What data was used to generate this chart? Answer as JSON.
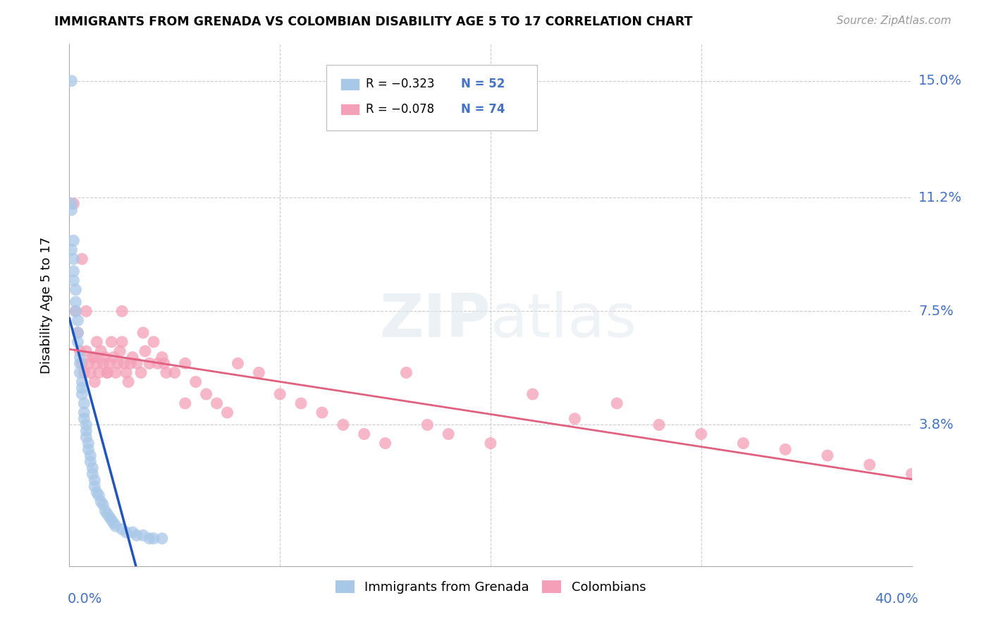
{
  "title": "IMMIGRANTS FROM GRENADA VS COLOMBIAN DISABILITY AGE 5 TO 17 CORRELATION CHART",
  "source": "Source: ZipAtlas.com",
  "ylabel": "Disability Age 5 to 17",
  "ytick_vals": [
    0.038,
    0.075,
    0.112,
    0.15
  ],
  "ytick_labels": [
    "3.8%",
    "7.5%",
    "11.2%",
    "15.0%"
  ],
  "xlim": [
    0.0,
    0.4
  ],
  "ylim": [
    -0.008,
    0.162
  ],
  "color_blue": "#a8c8e8",
  "color_pink": "#f4a0b8",
  "color_blue_line": "#2255bb",
  "color_pink_line": "#e06080",
  "color_axis_label": "#4472c4",
  "color_grid": "#cccccc",
  "legend_r1": "R = -0.323",
  "legend_n1": "N = 52",
  "legend_r2": "R = -0.078",
  "legend_n2": "N = 74",
  "grenada_x": [
    0.001,
    0.001,
    0.001,
    0.001,
    0.002,
    0.002,
    0.002,
    0.002,
    0.003,
    0.003,
    0.003,
    0.004,
    0.004,
    0.004,
    0.005,
    0.005,
    0.005,
    0.006,
    0.006,
    0.006,
    0.007,
    0.007,
    0.007,
    0.008,
    0.008,
    0.008,
    0.009,
    0.009,
    0.01,
    0.01,
    0.011,
    0.011,
    0.012,
    0.012,
    0.013,
    0.014,
    0.015,
    0.016,
    0.017,
    0.018,
    0.019,
    0.02,
    0.021,
    0.022,
    0.025,
    0.027,
    0.03,
    0.032,
    0.035,
    0.038,
    0.04,
    0.044
  ],
  "grenada_y": [
    0.15,
    0.11,
    0.108,
    0.095,
    0.098,
    0.092,
    0.088,
    0.085,
    0.082,
    0.078,
    0.075,
    0.072,
    0.068,
    0.065,
    0.06,
    0.058,
    0.055,
    0.052,
    0.05,
    0.048,
    0.045,
    0.042,
    0.04,
    0.038,
    0.036,
    0.034,
    0.032,
    0.03,
    0.028,
    0.026,
    0.024,
    0.022,
    0.02,
    0.018,
    0.016,
    0.015,
    0.013,
    0.012,
    0.01,
    0.009,
    0.008,
    0.007,
    0.006,
    0.005,
    0.004,
    0.003,
    0.003,
    0.002,
    0.002,
    0.001,
    0.001,
    0.001
  ],
  "colombian_x": [
    0.002,
    0.003,
    0.004,
    0.005,
    0.006,
    0.006,
    0.007,
    0.008,
    0.008,
    0.009,
    0.01,
    0.011,
    0.012,
    0.013,
    0.013,
    0.014,
    0.015,
    0.016,
    0.017,
    0.018,
    0.019,
    0.02,
    0.021,
    0.022,
    0.023,
    0.024,
    0.025,
    0.026,
    0.027,
    0.028,
    0.029,
    0.03,
    0.032,
    0.034,
    0.036,
    0.038,
    0.04,
    0.042,
    0.044,
    0.046,
    0.05,
    0.055,
    0.06,
    0.065,
    0.07,
    0.075,
    0.08,
    0.09,
    0.1,
    0.11,
    0.12,
    0.13,
    0.14,
    0.15,
    0.16,
    0.17,
    0.18,
    0.2,
    0.22,
    0.24,
    0.26,
    0.28,
    0.3,
    0.32,
    0.34,
    0.36,
    0.38,
    0.4,
    0.012,
    0.018,
    0.025,
    0.035,
    0.045,
    0.055
  ],
  "colombian_y": [
    0.11,
    0.075,
    0.068,
    0.062,
    0.058,
    0.092,
    0.055,
    0.075,
    0.062,
    0.058,
    0.055,
    0.06,
    0.052,
    0.065,
    0.058,
    0.055,
    0.062,
    0.058,
    0.06,
    0.055,
    0.058,
    0.065,
    0.06,
    0.055,
    0.058,
    0.062,
    0.065,
    0.058,
    0.055,
    0.052,
    0.058,
    0.06,
    0.058,
    0.055,
    0.062,
    0.058,
    0.065,
    0.058,
    0.06,
    0.055,
    0.055,
    0.058,
    0.052,
    0.048,
    0.045,
    0.042,
    0.058,
    0.055,
    0.048,
    0.045,
    0.042,
    0.038,
    0.035,
    0.032,
    0.055,
    0.038,
    0.035,
    0.032,
    0.048,
    0.04,
    0.045,
    0.038,
    0.035,
    0.032,
    0.03,
    0.028,
    0.025,
    0.022,
    0.06,
    0.055,
    0.075,
    0.068,
    0.058,
    0.045
  ]
}
